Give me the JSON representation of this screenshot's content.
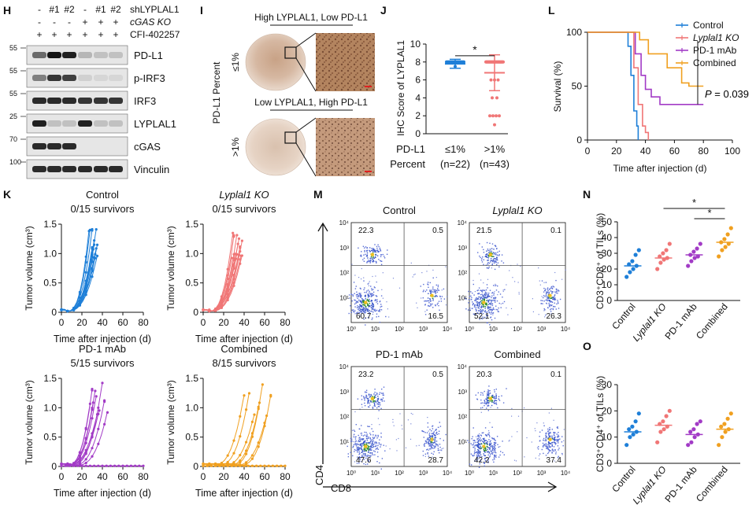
{
  "panels": {
    "H": {
      "letter": "H",
      "header_rows": [
        {
          "label": "shLYPLAL1",
          "italic": false,
          "marks": [
            "-",
            "#1",
            "#2",
            "-",
            "#1",
            "#2"
          ]
        },
        {
          "label": "cGAS KO",
          "italic": true,
          "marks": [
            "-",
            "-",
            "-",
            "+",
            "+",
            "+"
          ]
        },
        {
          "label": "CFI-402257",
          "italic": false,
          "marks": [
            "+",
            "+",
            "+",
            "+",
            "+",
            "+"
          ]
        }
      ],
      "blots": [
        {
          "label": "PD-L1",
          "mw": "55",
          "intensity": [
            0.55,
            0.95,
            0.9,
            0.2,
            0.15,
            0.15
          ]
        },
        {
          "label": "p-IRF3",
          "mw": "55",
          "intensity": [
            0.45,
            0.8,
            0.75,
            0.08,
            0.05,
            0.05
          ]
        },
        {
          "label": "IRF3",
          "mw": "55",
          "intensity": [
            0.85,
            0.85,
            0.85,
            0.8,
            0.8,
            0.8
          ]
        },
        {
          "label": "LYPLAL1",
          "mw": "25",
          "intensity": [
            0.9,
            0.15,
            0.15,
            0.9,
            0.15,
            0.15
          ]
        },
        {
          "label": "cGAS",
          "mw": "70",
          "intensity": [
            0.85,
            0.85,
            0.85,
            0.0,
            0.0,
            0.0
          ]
        },
        {
          "label": "Vinculin",
          "mw": "100",
          "intensity": [
            0.85,
            0.85,
            0.85,
            0.85,
            0.85,
            0.85
          ]
        }
      ]
    },
    "I": {
      "letter": "I",
      "y_title": "PD-L1 Percent",
      "rows": [
        {
          "title": "High LYPLAL1, Low PD-L1",
          "side_label": "≤1%"
        },
        {
          "title": "Low LYPLAL1, High PD-L1",
          "side_label": ">1%"
        }
      ]
    },
    "M": {
      "letter": "M",
      "x_axis_label": "CD8",
      "y_axis_label": "CD4",
      "tick_labels": [
        "10⁰",
        "10¹",
        "10²",
        "10³",
        "10⁴"
      ],
      "plots": [
        {
          "title": "Control",
          "italic": false,
          "quadrants": [
            "22.3",
            "0.5",
            "60.7",
            "16.5"
          ]
        },
        {
          "title": "Lyplal1 KO",
          "italic": true,
          "quadrants": [
            "21.5",
            "0.1",
            "52.1",
            "26.3"
          ]
        },
        {
          "title": "PD-1 mAb",
          "italic": false,
          "quadrants": [
            "23.2",
            "0.5",
            "47.6",
            "28.7"
          ]
        },
        {
          "title": "Combined",
          "italic": false,
          "quadrants": [
            "20.3",
            "0.1",
            "42.2",
            "37.4"
          ]
        }
      ]
    }
  },
  "colors": {
    "control": "#1e7fd8",
    "ko": "#f07676",
    "pd1": "#a23bc6",
    "combined": "#f0a020"
  },
  "chart_data": [
    {
      "id": "J",
      "type": "scatter",
      "letter": "J",
      "ylabel": "IHC Score of LYPLAL1",
      "ylim": [
        0,
        10
      ],
      "yticks": [
        "0",
        "2",
        "4",
        "6",
        "8",
        "10"
      ],
      "x_axis_title": "PD-L1 Percent",
      "groups": [
        {
          "label": "≤1%",
          "n": "(n=22)",
          "mean": 7.8,
          "sd": 0.5,
          "points": [
            8,
            8,
            8,
            8,
            8,
            8,
            8,
            8,
            8,
            8,
            8,
            8,
            8,
            8,
            8,
            8,
            8,
            7.5,
            8,
            8,
            8,
            8
          ]
        },
        {
          "label": ">1%",
          "n": "(n=43)",
          "mean": 6.8,
          "sd": 2.0,
          "points": [
            8,
            8,
            8,
            8,
            8,
            8,
            8,
            8,
            8,
            8,
            8,
            8,
            8,
            8,
            8,
            8,
            8,
            8,
            8,
            8,
            8,
            8,
            8,
            8,
            8,
            8,
            8,
            8,
            8,
            8,
            8,
            8,
            8,
            6,
            6,
            6,
            4,
            4,
            2,
            2,
            2,
            2,
            1
          ]
        }
      ],
      "significance": "*"
    },
    {
      "id": "L",
      "type": "line",
      "letter": "L",
      "xlabel": "Time after injection (d)",
      "ylabel": "Survival (%)",
      "xlim": [
        0,
        100
      ],
      "ylim": [
        0,
        100
      ],
      "xticks": [
        "0",
        "20",
        "40",
        "60",
        "80",
        "100"
      ],
      "yticks": [
        "0",
        "50",
        "100"
      ],
      "series": [
        {
          "name": "Control",
          "italic": false,
          "color_key": "control",
          "steps": [
            [
              0,
              100
            ],
            [
              28,
              100
            ],
            [
              28,
              87
            ],
            [
              30,
              87
            ],
            [
              30,
              60
            ],
            [
              32,
              60
            ],
            [
              32,
              27
            ],
            [
              34,
              27
            ],
            [
              34,
              13
            ],
            [
              35,
              13
            ],
            [
              35,
              0
            ]
          ]
        },
        {
          "name": "Lyplal1 KO",
          "italic": true,
          "color_key": "ko",
          "steps": [
            [
              0,
              100
            ],
            [
              32,
              100
            ],
            [
              32,
              67
            ],
            [
              35,
              67
            ],
            [
              35,
              33
            ],
            [
              38,
              33
            ],
            [
              38,
              13
            ],
            [
              40,
              13
            ],
            [
              40,
              7
            ],
            [
              42,
              7
            ],
            [
              42,
              0
            ]
          ]
        },
        {
          "name": "PD-1 mAb",
          "italic": false,
          "color_key": "pd1",
          "steps": [
            [
              0,
              100
            ],
            [
              33,
              100
            ],
            [
              33,
              80
            ],
            [
              37,
              80
            ],
            [
              37,
              60
            ],
            [
              40,
              60
            ],
            [
              40,
              47
            ],
            [
              44,
              47
            ],
            [
              44,
              40
            ],
            [
              50,
              40
            ],
            [
              50,
              33
            ],
            [
              80,
              33
            ]
          ]
        },
        {
          "name": "Combined",
          "italic": false,
          "color_key": "combined",
          "steps": [
            [
              0,
              100
            ],
            [
              36,
              100
            ],
            [
              36,
              93
            ],
            [
              42,
              93
            ],
            [
              42,
              80
            ],
            [
              55,
              80
            ],
            [
              55,
              67
            ],
            [
              65,
              67
            ],
            [
              65,
              53
            ],
            [
              70,
              53
            ],
            [
              70,
              50
            ],
            [
              80,
              50
            ]
          ]
        }
      ],
      "p_label": "P",
      "p_value": "= 0.039"
    },
    {
      "id": "K",
      "type": "line",
      "letter": "K",
      "xlabel": "Time after injection (d)",
      "ylabel": "Tumor volume (cm³)",
      "xlim": [
        0,
        80
      ],
      "ylim": [
        0,
        1.5
      ],
      "xticks": [
        "0",
        "20",
        "40",
        "60",
        "80"
      ],
      "yticks": [
        "0",
        "0.5",
        "1.0",
        "1.5"
      ],
      "groups": [
        {
          "title": "Control",
          "italic": false,
          "survivors": "0/15 survivors",
          "color_key": "control",
          "end_days": [
            27,
            28,
            29,
            30,
            30,
            31,
            31,
            32,
            32,
            33,
            33,
            34,
            34,
            35,
            35
          ],
          "survivor_count": 0
        },
        {
          "title": "Lyplal1 KO",
          "italic": true,
          "survivors": "0/15 survivors",
          "color_key": "ko",
          "end_days": [
            28,
            29,
            30,
            31,
            31,
            32,
            33,
            33,
            34,
            35,
            35,
            36,
            37,
            38,
            38
          ],
          "survivor_count": 0
        },
        {
          "title": "PD-1 mAb",
          "italic": false,
          "survivors": "5/15 survivors",
          "color_key": "pd1",
          "end_days": [
            28,
            30,
            31,
            33,
            34,
            35,
            37,
            40,
            42,
            45
          ],
          "survivor_count": 5
        },
        {
          "title": "Combined",
          "italic": false,
          "survivors": "8/15 survivors",
          "color_key": "combined",
          "end_days": [
            40,
            45,
            50,
            55,
            58,
            62,
            66
          ],
          "survivor_count": 8
        }
      ]
    },
    {
      "id": "N",
      "type": "scatter",
      "letter": "N",
      "ylabel": "CD3⁺CD8⁺ of TILs (%)",
      "ylim": [
        0,
        50
      ],
      "yticks": [
        "0",
        "10",
        "20",
        "30",
        "40",
        "50"
      ],
      "categories": [
        "Control",
        "Lyplal1 KO",
        "PD-1 mAb",
        "Combined"
      ],
      "category_italic": [
        false,
        true,
        false,
        false
      ],
      "color_keys": [
        "control",
        "ko",
        "pd1",
        "combined"
      ],
      "means": [
        22,
        27,
        29,
        37
      ],
      "points": [
        [
          15,
          18,
          20,
          22,
          23,
          25,
          29,
          32
        ],
        [
          20,
          24,
          26,
          27,
          28,
          30,
          32,
          36
        ],
        [
          22,
          25,
          27,
          28,
          29,
          31,
          33,
          36
        ],
        [
          28,
          32,
          34,
          36,
          37,
          39,
          42,
          46
        ]
      ],
      "significance": [
        "*",
        "*"
      ]
    },
    {
      "id": "O",
      "type": "scatter",
      "letter": "O",
      "ylabel": "CD3⁺CD4⁺ of TILs (%)",
      "ylim": [
        0,
        30
      ],
      "yticks": [
        "0",
        "10",
        "20",
        "30"
      ],
      "categories": [
        "Control",
        "Lyplal1 KO",
        "PD-1 mAb",
        "Combined"
      ],
      "category_italic": [
        false,
        true,
        false,
        false
      ],
      "color_keys": [
        "control",
        "ko",
        "pd1",
        "combined"
      ],
      "means": [
        12,
        14.5,
        11,
        13
      ],
      "points": [
        [
          7,
          10,
          11,
          12,
          13,
          14,
          16,
          19
        ],
        [
          8,
          12,
          13,
          14,
          15,
          16,
          18,
          20
        ],
        [
          7,
          8,
          10,
          11,
          12,
          13,
          15,
          16
        ],
        [
          7,
          10,
          12,
          13,
          14,
          15,
          17,
          19
        ]
      ]
    }
  ]
}
